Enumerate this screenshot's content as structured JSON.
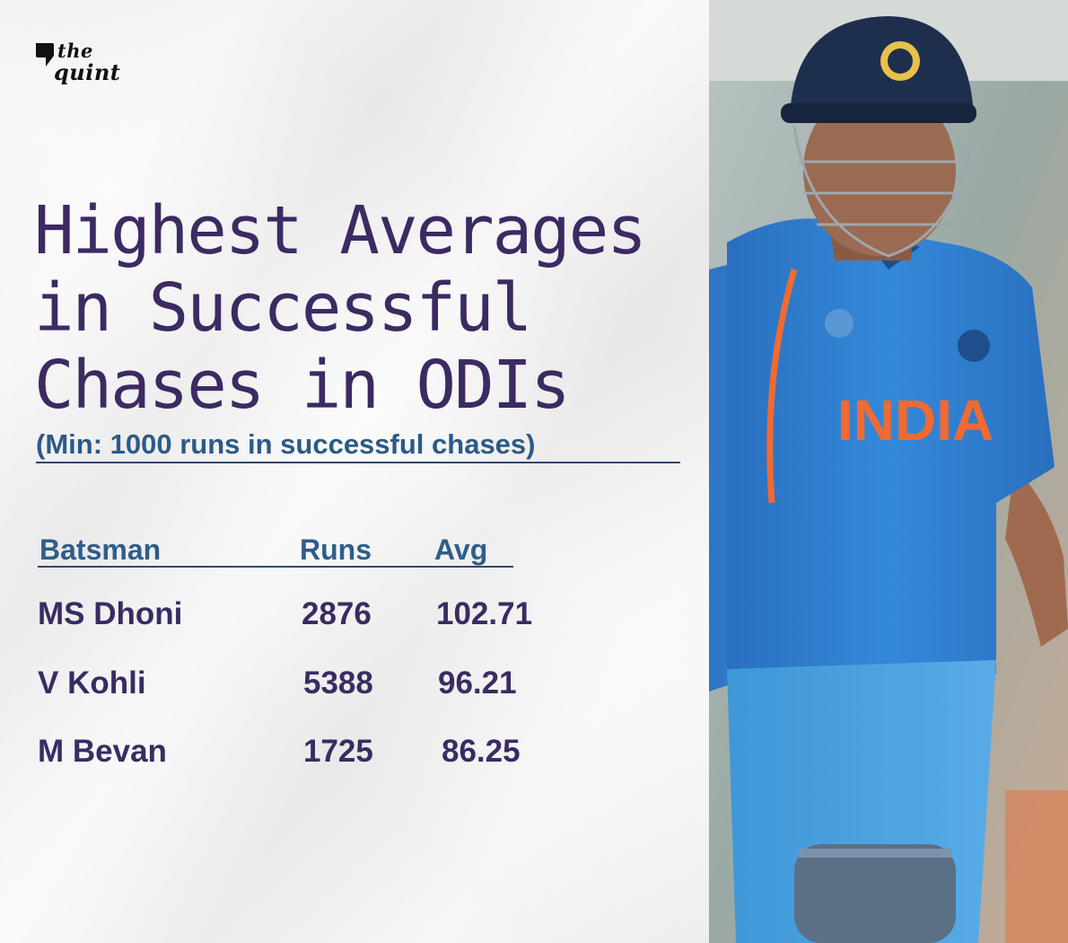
{
  "logo": {
    "line1": "the",
    "line2": "quint"
  },
  "title_lines": [
    "Highest Averages",
    "in Successful",
    "Chases in ODIs"
  ],
  "subtitle": "(Min: 1000 runs in successful chases)",
  "colors": {
    "title": "#3c2a62",
    "subtitle": "#2c5a86",
    "jersey": "#2f7fd0",
    "helmet": "#1e2f4d",
    "india_text": "#f06a32"
  },
  "photo": {
    "jersey_text": "INDIA"
  },
  "chart_data": {
    "type": "table",
    "columns": [
      "Batsman",
      "Runs",
      "Avg"
    ],
    "rows": [
      {
        "batsman": "MS Dhoni",
        "runs": "2876",
        "avg": "102.71"
      },
      {
        "batsman": "V Kohli",
        "runs": "5388",
        "avg": "96.21"
      },
      {
        "batsman": "M Bevan",
        "runs": "1725",
        "avg": "86.25"
      }
    ]
  }
}
